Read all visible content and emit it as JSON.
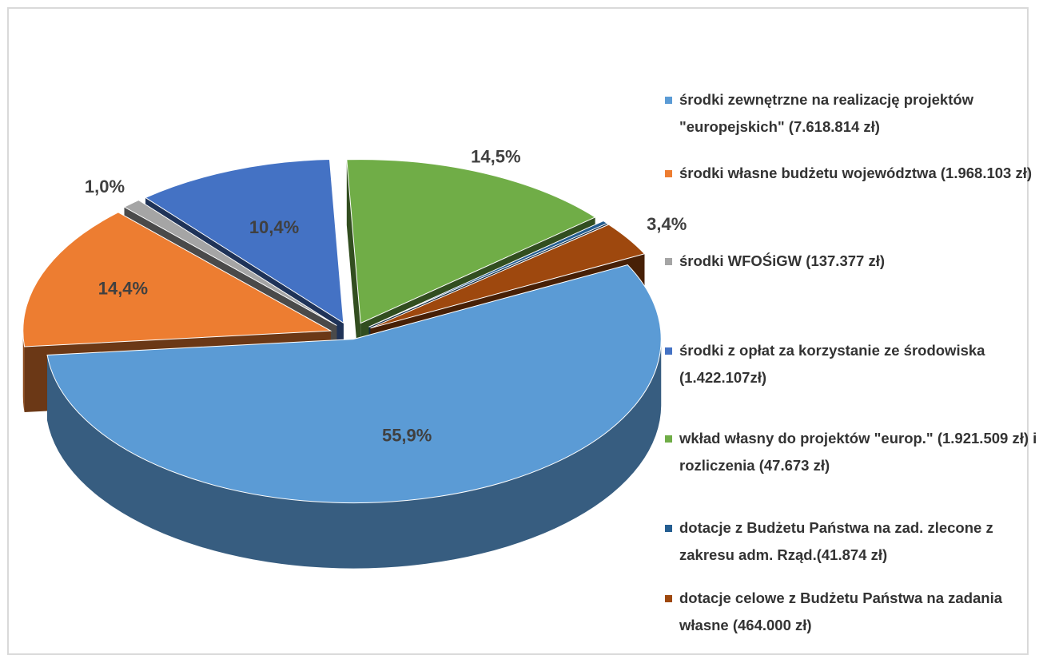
{
  "chart_data": {
    "type": "pie3d",
    "categories": [
      "środki zewnętrzne na realizację projektów \"europejskich\" (7.618.814 zł)",
      "środki własne budżetu województwa (1.968.103 zł)",
      "środki WFOŚiGW (137.377 zł)",
      "środki z opłat za korzystanie ze środowiska (1.422.107zł)",
      "wkład własny do projektów \"europ.\" (1.921.509 zł) i rozliczenia (47.673 zł)",
      "dotacje z Budżetu Państwa na zad. zlecone z zakresu adm. Rząd.(41.874 zł)",
      "dotacje celowe z Budżetu Państwa na zadania własne (464.000 zł)"
    ],
    "values": [
      55.9,
      14.4,
      1.0,
      10.4,
      14.5,
      0.3,
      3.4
    ],
    "value_labels": [
      "55,9%",
      "14,4%",
      "1,0%",
      "10,4%",
      "14,5%",
      null,
      "3,4%"
    ],
    "colors": [
      "#5b9bd5",
      "#ed7d31",
      "#a5a5a5",
      "#4472c4",
      "#70ad47",
      "#255e91",
      "#9e480e"
    ],
    "legend": "right"
  }
}
